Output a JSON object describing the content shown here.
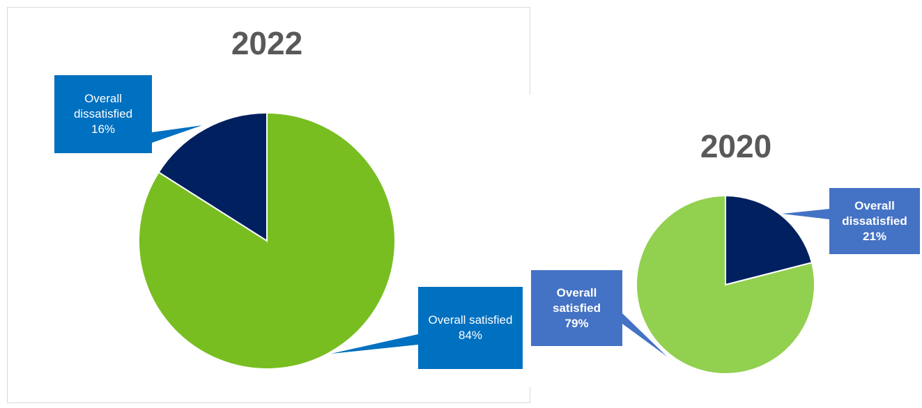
{
  "chart_data": [
    {
      "type": "pie",
      "title": "2022",
      "categories": [
        "Overall dissatisfied",
        "Overall satisfied"
      ],
      "values": [
        16,
        84
      ],
      "value_labels": [
        "16%",
        "84%"
      ],
      "colors": [
        "#002060",
        "#78be21"
      ],
      "label_color": "#0070c0"
    },
    {
      "type": "pie",
      "title": "2020",
      "categories": [
        "Overall dissatisfied",
        "Overall satisfied"
      ],
      "values": [
        21,
        79
      ],
      "value_labels": [
        "21%",
        "79%"
      ],
      "colors": [
        "#002060",
        "#92d050"
      ],
      "label_color": "#4472c4"
    }
  ]
}
